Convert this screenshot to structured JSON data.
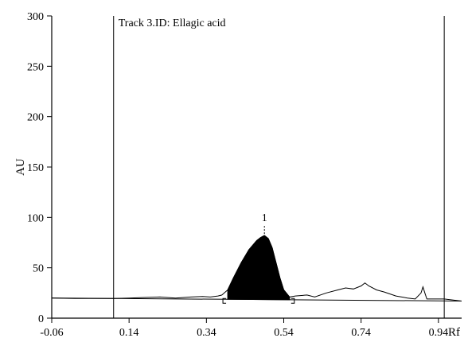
{
  "chart_data": {
    "type": "line",
    "title": "Track 3.ID: Ellagic acid",
    "xlabel": "Rf",
    "ylabel": "AU",
    "xlim": [
      -0.06,
      1.0
    ],
    "ylim": [
      0,
      300
    ],
    "x_ticks": [
      "-0.06",
      "0.14",
      "0.34",
      "0.54",
      "0.74",
      "0.94"
    ],
    "y_ticks": [
      "0",
      "50",
      "100",
      "150",
      "200",
      "250",
      "300"
    ],
    "grid": false,
    "front_line_rf": 0.1,
    "solvent_front_rf": 0.955,
    "peak": {
      "label": "1",
      "rf": 0.49,
      "height": 82,
      "start_rf": 0.395,
      "end_rf": 0.555
    },
    "series": [
      {
        "x": [
          -0.06,
          0.0,
          0.05,
          0.1,
          0.14,
          0.18,
          0.22,
          0.26,
          0.3,
          0.33,
          0.35,
          0.37,
          0.38,
          0.395,
          0.41,
          0.43,
          0.45,
          0.47,
          0.48,
          0.49,
          0.5,
          0.51,
          0.52,
          0.53,
          0.54,
          0.555,
          0.57,
          0.6,
          0.62,
          0.65,
          0.68,
          0.7,
          0.72,
          0.74,
          0.75,
          0.76,
          0.78,
          0.8,
          0.83,
          0.86,
          0.88,
          0.895,
          0.9,
          0.905,
          0.91,
          0.93,
          0.955,
          1.0
        ],
        "y": [
          20,
          19.5,
          19.5,
          19.5,
          20,
          20.5,
          21,
          20,
          21,
          21.5,
          21,
          22,
          23,
          28,
          40,
          55,
          68,
          77,
          80,
          82,
          79,
          70,
          55,
          40,
          28,
          21,
          22,
          23,
          21,
          25,
          28,
          30,
          29,
          32,
          35,
          32,
          28,
          26,
          22,
          20,
          19,
          25,
          31,
          25,
          19,
          19,
          19,
          17
        ]
      }
    ]
  }
}
